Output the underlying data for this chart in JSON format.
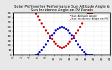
{
  "title": "Solar PV/Inverter Performance Sun Altitude Angle & Sun Incidence Angle on PV Panels",
  "title_fontsize": 3.8,
  "background_color": "#e8e8e8",
  "plot_bg_color": "#ffffff",
  "grid_color": "#bbbbbb",
  "ylim": [
    0,
    90
  ],
  "xlim": [
    0,
    24
  ],
  "yticks": [
    0,
    10,
    20,
    30,
    40,
    50,
    60,
    70,
    80,
    90
  ],
  "ytick_labels": [
    "0",
    "10",
    "20",
    "30",
    "40",
    "50",
    "60",
    "70",
    "80",
    "90"
  ],
  "xticks": [
    0,
    2,
    4,
    6,
    8,
    10,
    12,
    14,
    16,
    18,
    20,
    22,
    24
  ],
  "legend_labels": [
    "Sun Altitude Angle",
    "Sun Incidence Angle on PV"
  ],
  "legend_colors": [
    "#0000cc",
    "#cc0000"
  ],
  "altitude_x": [
    5.5,
    6.0,
    6.5,
    7.0,
    7.5,
    8.0,
    8.5,
    9.0,
    9.5,
    10.0,
    10.5,
    11.0,
    11.5,
    12.0,
    12.5,
    13.0,
    13.5,
    14.0,
    14.5,
    15.0,
    15.5,
    16.0,
    16.5,
    17.0,
    17.5,
    18.0,
    18.5,
    19.0,
    19.5
  ],
  "altitude_y": [
    0,
    2,
    6,
    11,
    17,
    23,
    30,
    36,
    42,
    47,
    52,
    56,
    59,
    60,
    59,
    56,
    52,
    47,
    42,
    36,
    30,
    23,
    17,
    11,
    6,
    2,
    0,
    0,
    0
  ],
  "incidence_x": [
    5.5,
    6.0,
    6.5,
    7.0,
    7.5,
    8.0,
    8.5,
    9.0,
    9.5,
    10.0,
    10.5,
    11.0,
    11.5,
    12.0,
    12.5,
    13.0,
    13.5,
    14.0,
    14.5,
    15.0,
    15.5,
    16.0,
    16.5,
    17.0,
    17.5,
    18.0,
    18.5,
    19.0,
    19.5
  ],
  "incidence_y": [
    88,
    82,
    75,
    68,
    60,
    53,
    46,
    40,
    34,
    29,
    24,
    20,
    17,
    15,
    17,
    20,
    24,
    29,
    34,
    40,
    46,
    53,
    60,
    68,
    75,
    82,
    88,
    88,
    88
  ],
  "marker_size": 1.2,
  "tick_fontsize": 3.0,
  "legend_fontsize": 2.8
}
